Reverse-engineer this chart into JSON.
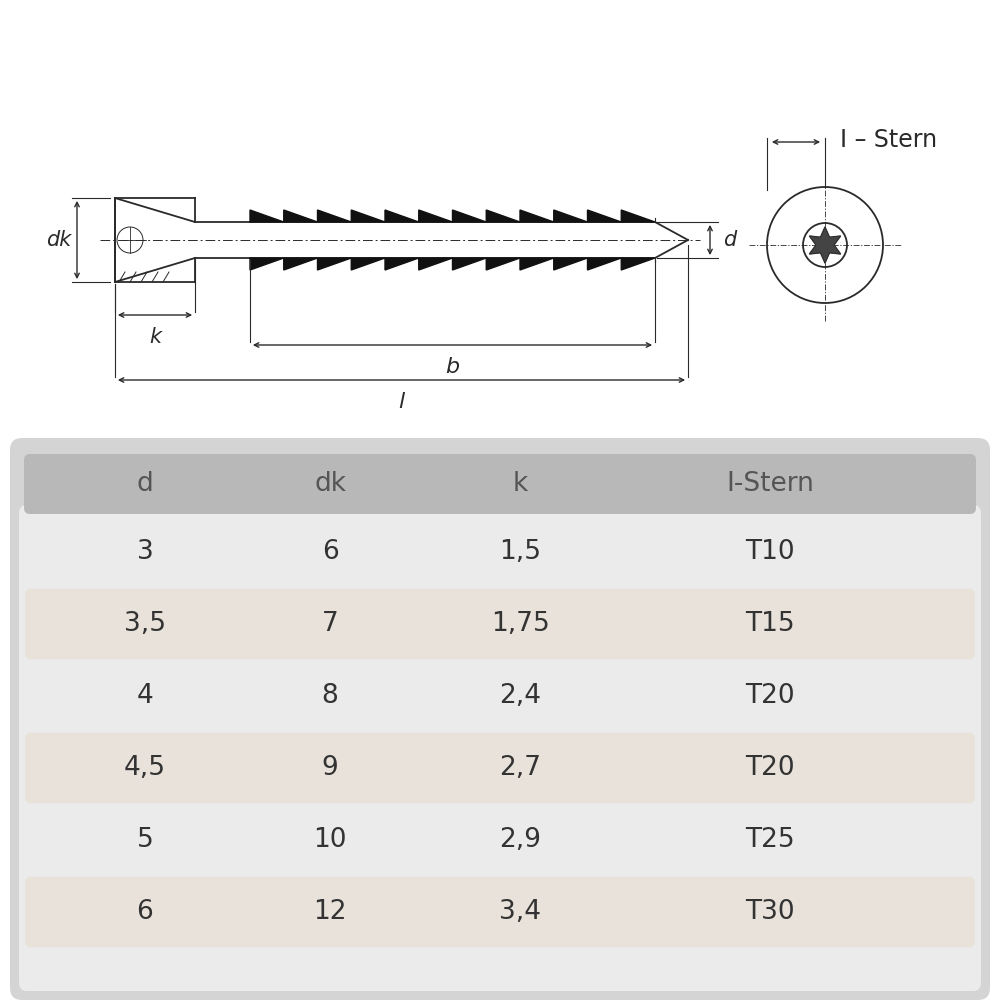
{
  "bg_color": "#ffffff",
  "table_bg": "#d8d8d8",
  "table_stripe": "#ece8e2",
  "header_bg": "#b8b8b8",
  "header_text": "#555555",
  "body_text": "#333333",
  "drawing_line_color": "#2a2a2a",
  "columns": [
    "d",
    "dk",
    "k",
    "I-Stern"
  ],
  "rows": [
    [
      "3",
      "6",
      "1,5",
      "T10"
    ],
    [
      "3,5",
      "7",
      "1,75",
      "T15"
    ],
    [
      "4",
      "8",
      "2,4",
      "T20"
    ],
    [
      "4,5",
      "9",
      "2,7",
      "T20"
    ],
    [
      "5",
      "10",
      "2,9",
      "T25"
    ],
    [
      "6",
      "12",
      "3,4",
      "T30"
    ]
  ],
  "font_size_table": 19,
  "font_size_header": 19,
  "font_size_label": 15,
  "font_size_istern": 17
}
